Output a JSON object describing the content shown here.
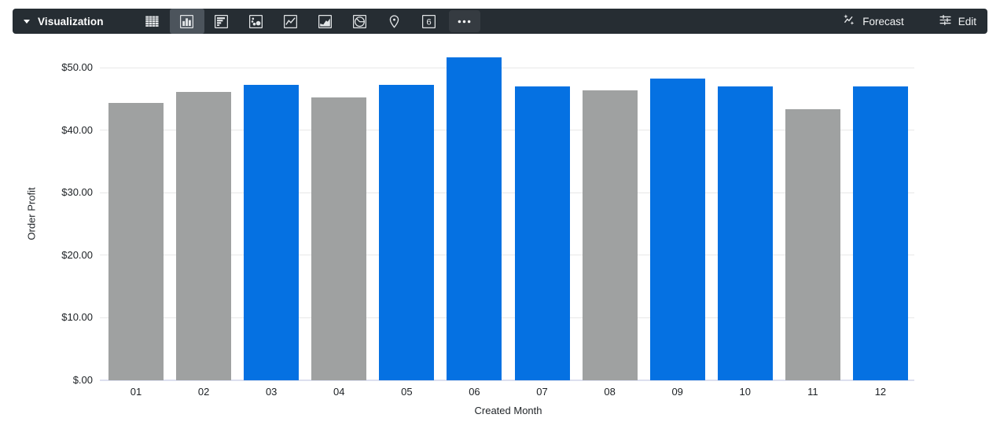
{
  "toolbar": {
    "title": "Visualization",
    "chart_type_buttons": [
      {
        "name": "table",
        "selected": false
      },
      {
        "name": "column",
        "selected": true
      },
      {
        "name": "bar",
        "selected": false
      },
      {
        "name": "scatter",
        "selected": false
      },
      {
        "name": "line",
        "selected": false
      },
      {
        "name": "area",
        "selected": false
      },
      {
        "name": "pie",
        "selected": false
      },
      {
        "name": "map",
        "selected": false
      },
      {
        "name": "single-value",
        "selected": false,
        "glyph": "6"
      },
      {
        "name": "more",
        "selected": false
      }
    ],
    "forecast_label": "Forecast",
    "edit_label": "Edit"
  },
  "colors": {
    "toolbar_bg": "#262d33",
    "selected_button_bg": "#4c545c",
    "gridline": "#e8e8e8",
    "axis_line": "#dde0ef"
  },
  "chart_data": {
    "type": "bar",
    "title": "",
    "xlabel": "Created Month",
    "ylabel": "Order Profit",
    "categories": [
      "01",
      "02",
      "03",
      "04",
      "05",
      "06",
      "07",
      "08",
      "09",
      "10",
      "11",
      "12"
    ],
    "values": [
      44.4,
      46.2,
      47.3,
      45.3,
      47.3,
      51.7,
      47.0,
      46.4,
      48.3,
      47.0,
      43.4,
      47.1
    ],
    "bar_palette": [
      "gray",
      "gray",
      "blue",
      "gray",
      "blue",
      "blue",
      "blue",
      "gray",
      "blue",
      "blue",
      "gray",
      "blue"
    ],
    "colors": {
      "blue": "#0571e2",
      "gray": "#9fa1a1"
    },
    "y_ticks": [
      {
        "label": "$50.00",
        "value": 50
      },
      {
        "label": "$40.00",
        "value": 40
      },
      {
        "label": "$30.00",
        "value": 30
      },
      {
        "label": "$20.00",
        "value": 20
      },
      {
        "label": "$10.00",
        "value": 10
      },
      {
        "label": "$.00",
        "value": 0
      }
    ],
    "ylim": [
      0,
      52.83
    ],
    "grid": true,
    "legend": "none"
  }
}
